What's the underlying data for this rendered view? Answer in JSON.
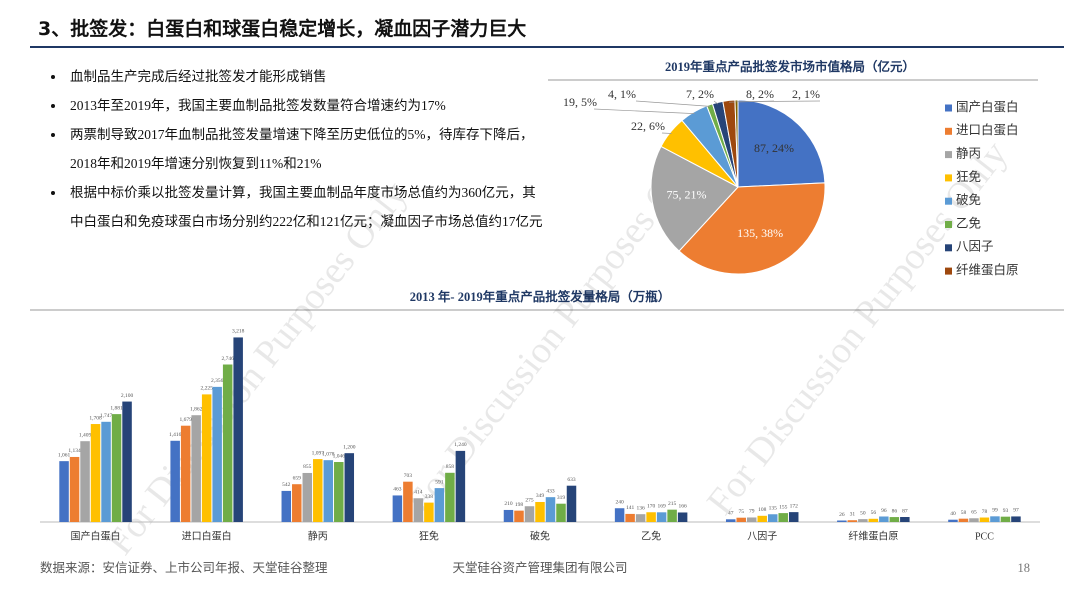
{
  "header": {
    "title": "3、批签发：白蛋白和球蛋白稳定增长，凝血因子潜力巨大"
  },
  "bullets": [
    "血制品生产完成后经过批签发才能形成销售",
    "2013年至2019年，我国主要血制品批签发数量符合增速约为17%",
    "两票制导致2017年血制品批签发量增速下降至历史低位的5%，待库存下降后，2018年和2019年增速分别恢复到11%和21%",
    "根据中标价乘以批签发量计算，我国主要血制品年度市场总值约为360亿元，其中白蛋白和免疫球蛋白市场分别约222亿和121亿元；凝血因子市场总值约17亿元"
  ],
  "chart_data": [
    {
      "type": "pie",
      "title": "2019年重点产品批签发市场市值格局（亿元）",
      "categories": [
        "国产白蛋白",
        "进口白蛋白",
        "静丙",
        "狂免",
        "破免",
        "乙免",
        "八因子",
        "纤维蛋白原",
        null
      ],
      "values": [
        87,
        135,
        75,
        22,
        19,
        4,
        7,
        8,
        2
      ],
      "value_labels": [
        "87, 24%",
        "135, 38%",
        "75, 21%",
        "22, 6%",
        "19, 5%",
        "4, 1%",
        "7, 2%",
        "8, 2%",
        "2, 1%"
      ],
      "colors": [
        "#4472c4",
        "#ed7d31",
        "#a5a5a5",
        "#ffc000",
        "#5b9bd5",
        "#70ad47",
        "#264478",
        "#9e480e",
        "#7f6000"
      ],
      "legend": "right"
    },
    {
      "type": "bar",
      "title": "2013 年- 2019年重点产品批签发量格局（万瓶）",
      "categories": [
        "国产白蛋白",
        "进口白蛋白",
        "静丙",
        "狂免",
        "破免",
        "乙免",
        "八因子",
        "纤维蛋白原",
        "PCC"
      ],
      "ylim": [
        0,
        3400
      ],
      "series": [
        {
          "color": "#4472c4",
          "values": [
            1061,
            1416,
            542,
            463,
            210,
            240,
            47,
            26,
            40
          ],
          "value_labels": [
            "1,061",
            "1,416",
            "542",
            "463",
            "210",
            "240",
            "47",
            "26",
            "40"
          ]
        },
        {
          "color": "#ed7d31",
          "values": [
            1134,
            1679,
            659,
            703,
            198,
            141,
            75,
            31,
            58
          ],
          "value_labels": [
            "1,134",
            "1,679",
            "659",
            "703",
            "198",
            "141",
            "75",
            "31",
            "58"
          ]
        },
        {
          "color": "#a5a5a5",
          "values": [
            1409,
            1862,
            855,
            414,
            275,
            136,
            79,
            50,
            65
          ],
          "value_labels": [
            "1,409",
            "1,862",
            "855",
            "414",
            "275",
            "136",
            "79",
            "50",
            "65"
          ]
        },
        {
          "color": "#ffc000",
          "values": [
            1708,
            2225,
            1097,
            338,
            349,
            170,
            108,
            56,
            78
          ],
          "value_labels": [
            "1,708",
            "2,225",
            "1,097",
            "338",
            "349",
            "170",
            "108",
            "56",
            "78"
          ]
        },
        {
          "color": "#5b9bd5",
          "values": [
            1747,
            2356,
            1078,
            591,
            433,
            169,
            135,
            96,
            99
          ],
          "value_labels": [
            "1,747",
            "2,356",
            "1,078",
            "591",
            "433",
            "169",
            "135",
            "96",
            "99"
          ]
        },
        {
          "color": "#70ad47",
          "values": [
            1881,
            2746,
            1046,
            858,
            319,
            215,
            155,
            86,
            93
          ],
          "value_labels": [
            "1,881",
            "2,746",
            "1,046",
            "858",
            "319",
            "215",
            "155",
            "86",
            "93"
          ]
        },
        {
          "color": "#264478",
          "values": [
            2100,
            3218,
            1200,
            1240,
            633,
            166,
            172,
            87,
            97
          ],
          "value_labels": [
            "2,100",
            "3,218",
            "1,200",
            "1,240",
            "633",
            "166",
            "172",
            "87",
            "97"
          ]
        }
      ]
    }
  ],
  "footer": {
    "source": "数据来源：安信证券、上市公司年报、天堂硅谷整理",
    "company": "天堂硅谷资产管理集团有限公司",
    "page": "18"
  },
  "watermark": "For Discussion Purposes Only"
}
